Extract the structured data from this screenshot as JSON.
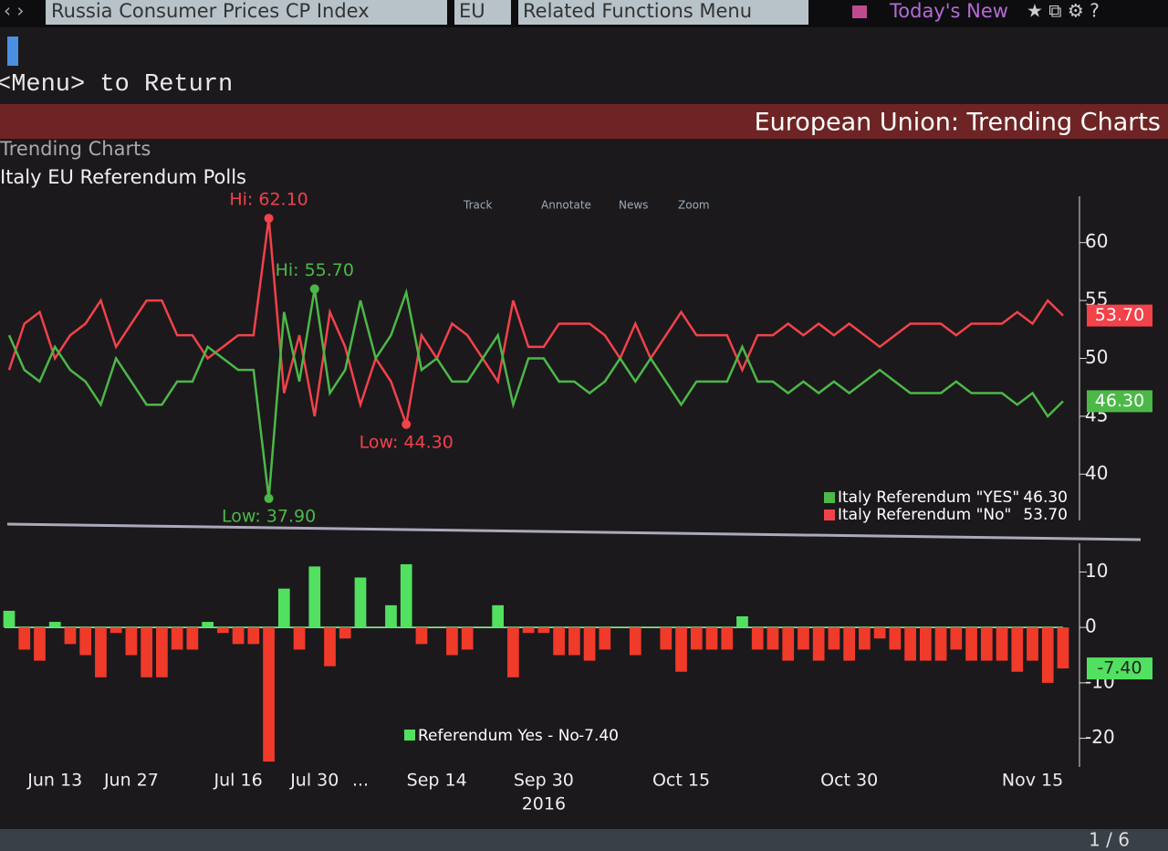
{
  "toolbar": {
    "security": "Russia Consumer Prices CP Index",
    "region": "EU",
    "functions": "Related Functions Menu",
    "news": "Today's New"
  },
  "command": "<Menu> to Return",
  "header": {
    "title": "European Union: Trending Charts",
    "section": "Trending Charts",
    "subtitle": "Italy EU Referendum Polls",
    "tools": [
      "Track",
      "Annotate",
      "News",
      "Zoom"
    ]
  },
  "pager": "1 / 6",
  "x_axis": {
    "categories": [
      null,
      null,
      null,
      "Jun 13",
      null,
      null,
      null,
      null,
      "Jun 27",
      null,
      null,
      null,
      null,
      null,
      null,
      "Jul 16",
      null,
      null,
      null,
      null,
      "Jul 30",
      null,
      null,
      "...",
      null,
      null,
      null,
      null,
      "Sep 14",
      null,
      null,
      null,
      null,
      null,
      null,
      "Sep 30",
      null,
      null,
      null,
      null,
      null,
      null,
      null,
      null,
      "Oct 15",
      null,
      null,
      null,
      null,
      null,
      null,
      null,
      null,
      null,
      null,
      "Oct 30",
      null,
      null,
      null,
      null,
      null,
      null,
      null,
      null,
      null,
      null,
      null,
      "Nov 15",
      null,
      null
    ],
    "year": "2016"
  },
  "chart_data": [
    {
      "type": "line",
      "ylim": [
        36,
        64
      ],
      "yticks": [
        40,
        45,
        50,
        55,
        60
      ],
      "annotations": {
        "max": [
          "Hi: 62.10",
          "Hi: 55.70"
        ],
        "min": [
          "Low: 44.30",
          "Low: 37.90"
        ]
      },
      "series": [
        {
          "name": "Italy Referendum \"No\"",
          "color": "#f2424a",
          "last_value_label": "53.70",
          "values": [
            49,
            53,
            54,
            50,
            52,
            53,
            55,
            51,
            53,
            55,
            55,
            52,
            52,
            50,
            51,
            52,
            52,
            62.1,
            47,
            52,
            45,
            54,
            51,
            46,
            50,
            48,
            44.3,
            52,
            50,
            53,
            52,
            50,
            48,
            55,
            51,
            51,
            53,
            53,
            53,
            52,
            50,
            53,
            50,
            52,
            54,
            52,
            52,
            52,
            49,
            52,
            52,
            53,
            52,
            53,
            52,
            53,
            52,
            51,
            52,
            53,
            53,
            53,
            52,
            53,
            53,
            53,
            54,
            53,
            55,
            53.7
          ]
        },
        {
          "name": "Italy Referendum \"YES\"",
          "color": "#4cb848",
          "last_value_label": "46.30",
          "values": [
            52,
            49,
            48,
            51,
            49,
            48,
            46,
            50,
            48,
            46,
            46,
            48,
            48,
            51,
            50,
            49,
            49,
            37.9,
            54,
            48,
            56,
            47,
            49,
            55,
            50,
            52,
            55.7,
            49,
            50,
            48,
            48,
            50,
            52,
            46,
            50,
            50,
            48,
            48,
            47,
            48,
            50,
            48,
            50,
            48,
            46,
            48,
            48,
            48,
            51,
            48,
            48,
            47,
            48,
            47,
            48,
            47,
            48,
            49,
            48,
            47,
            47,
            47,
            48,
            47,
            47,
            47,
            46,
            47,
            45,
            46.3
          ]
        }
      ]
    },
    {
      "type": "bar",
      "ylim": [
        -26,
        16
      ],
      "yticks": [
        -20,
        -10,
        0,
        10
      ],
      "positive_color": "#52e060",
      "negative_color": "#f03a2a",
      "series": [
        {
          "name": "Referendum Yes - No",
          "last_value_label": "-7.40",
          "values": [
            3,
            -4,
            -6,
            1,
            -3,
            -5,
            -9,
            -1,
            -5,
            -9,
            -9,
            -4,
            -4,
            1,
            -1,
            -3,
            -3,
            -24.2,
            7,
            -4,
            11,
            -7,
            -2,
            9,
            0,
            4,
            11.4,
            -3,
            0,
            -5,
            -4,
            0,
            4,
            -9,
            -1,
            -1,
            -5,
            -5,
            -6,
            -4,
            0,
            -5,
            0,
            -4,
            -8,
            -4,
            -4,
            -4,
            2,
            -4,
            -4,
            -6,
            -4,
            -6,
            -4,
            -6,
            -4,
            -2,
            -4,
            -6,
            -6,
            -6,
            -4,
            -6,
            -6,
            -6,
            -8,
            -6,
            -10,
            -7.4
          ]
        }
      ]
    }
  ]
}
